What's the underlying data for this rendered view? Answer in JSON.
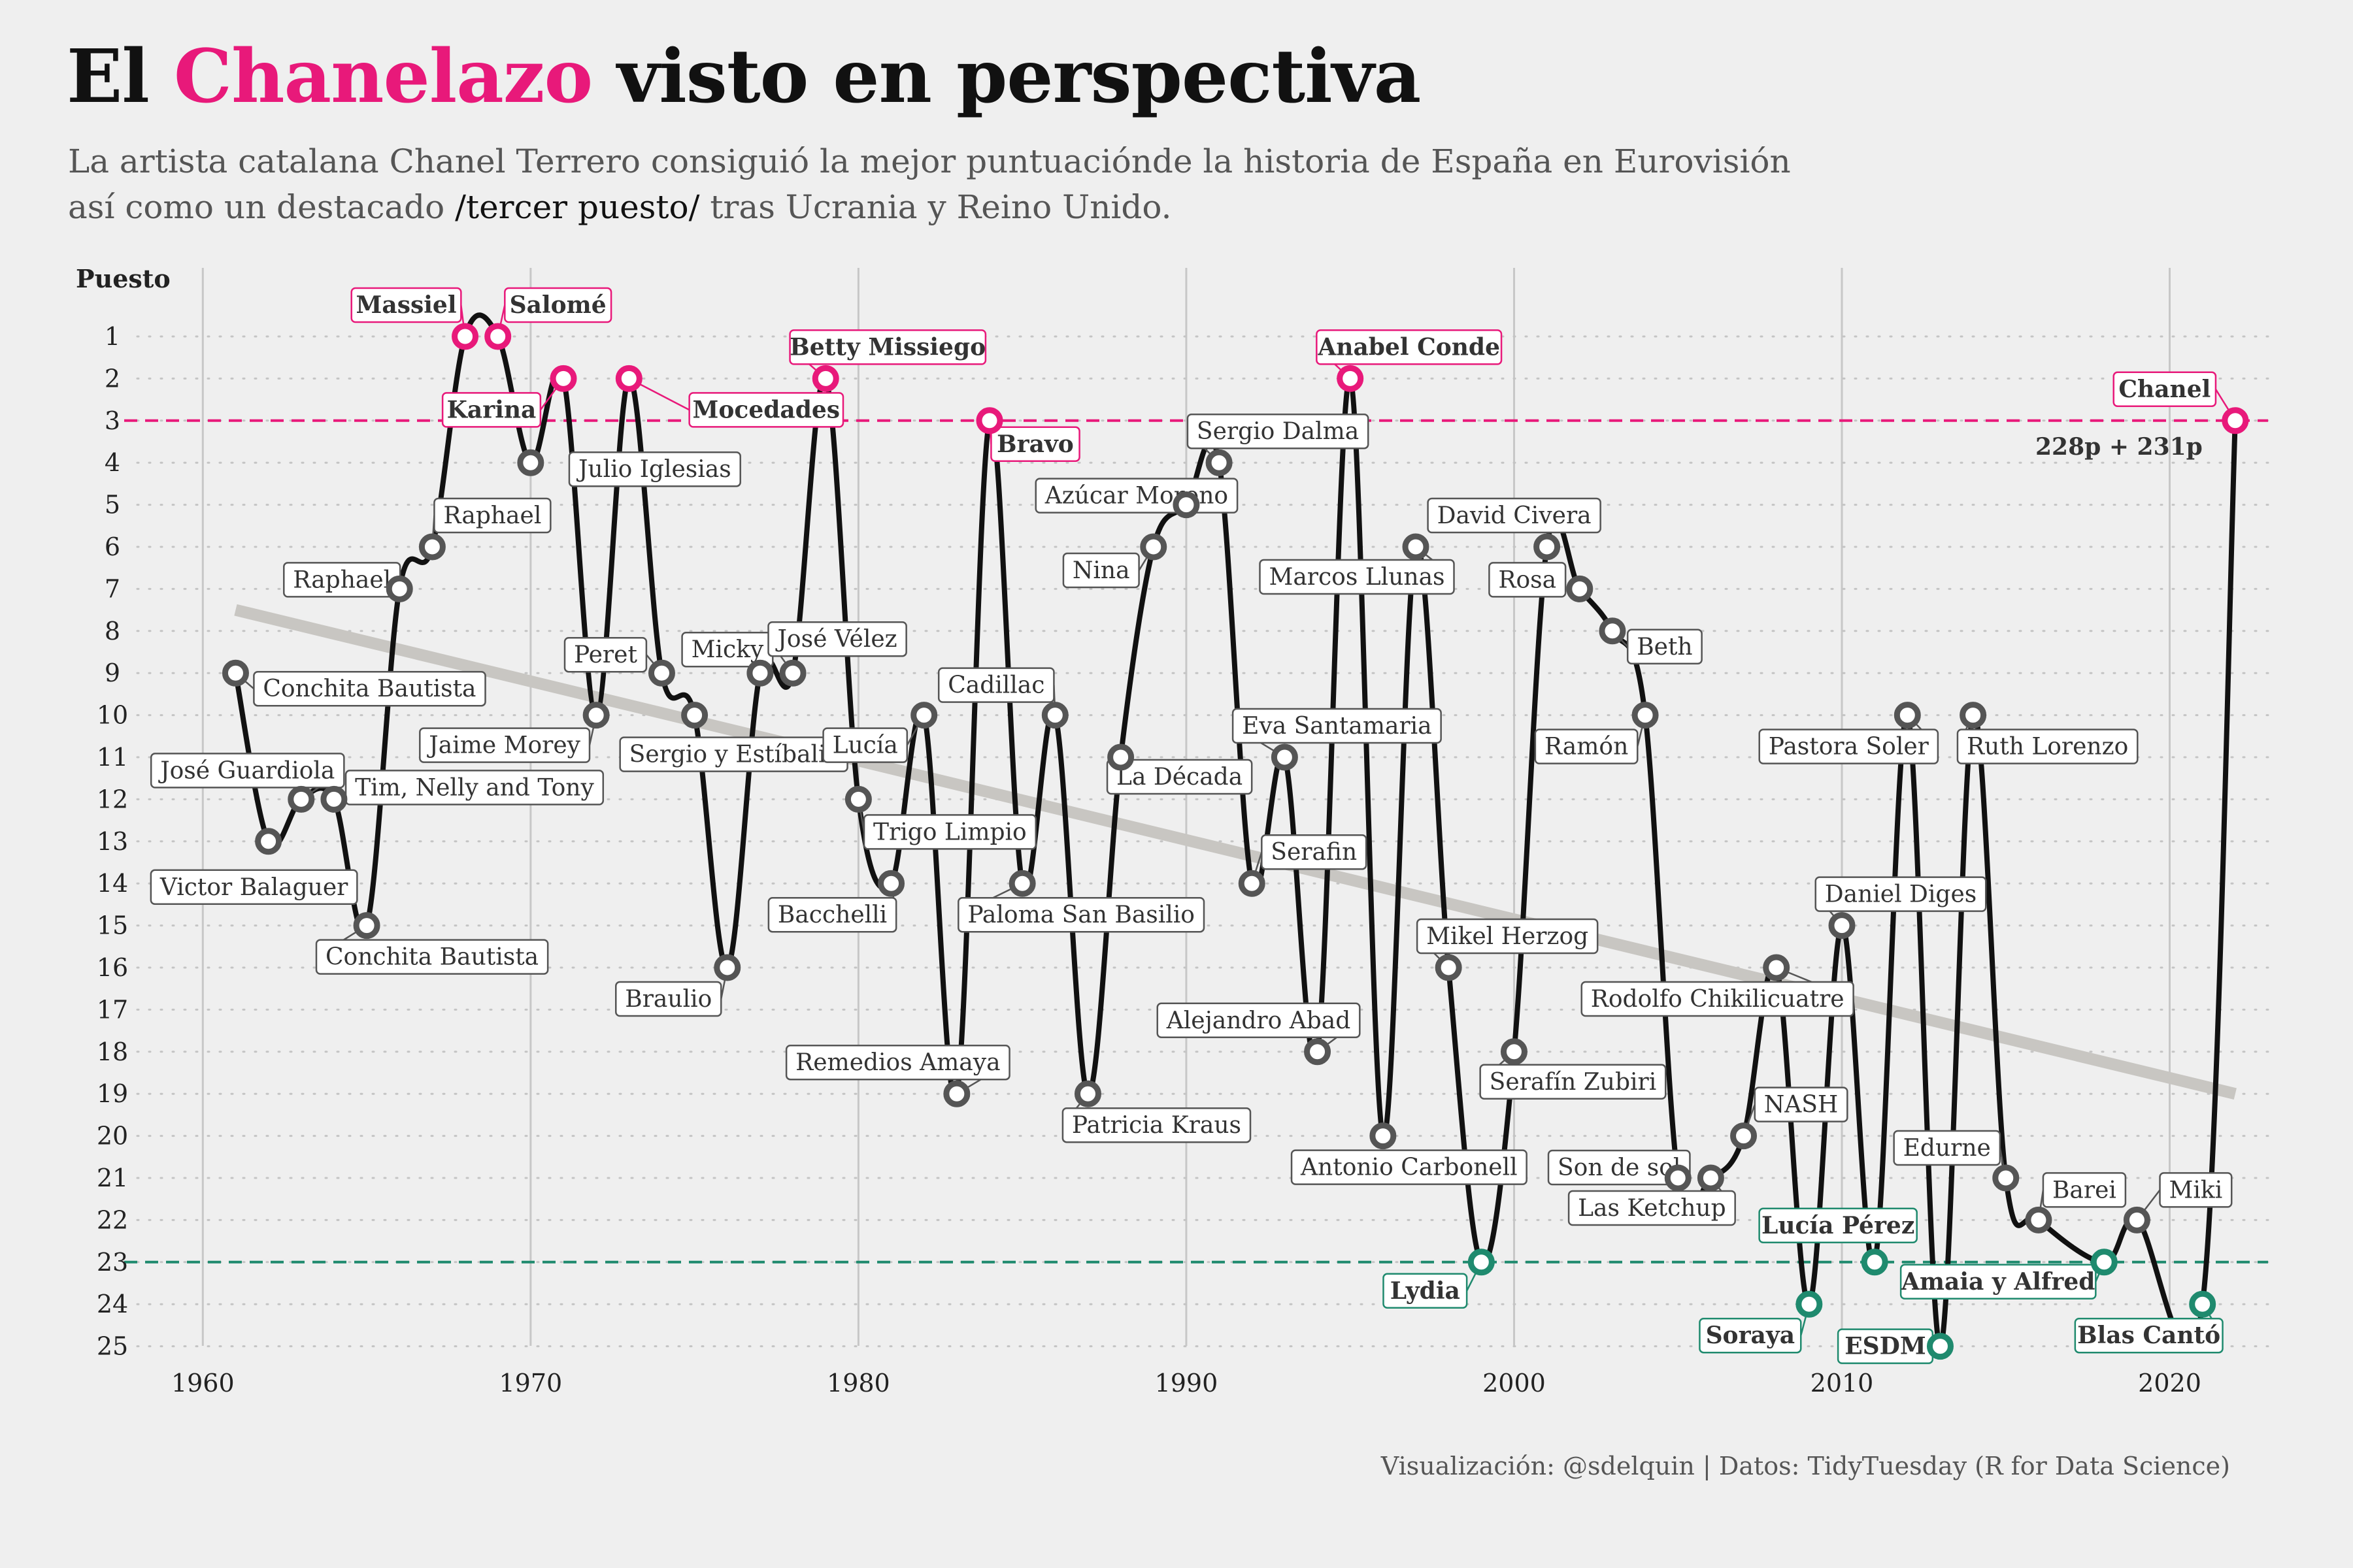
{
  "header": {
    "title_pre": "El",
    "title_highlight": "Chanelazo",
    "title_post": "visto en perspectiva",
    "subtitle_line1": "La artista catalana Chanel Terrero consiguió la mejor puntuaciónde la historia de España en Eurovisión",
    "subtitle_line2_pre": "así como un destacado",
    "subtitle_line2_em": "/tercer puesto/",
    "subtitle_line2_post": "tras Ucrania y Reino Unido."
  },
  "caption": "Visualización: @sdelquin | Datos: TidyTuesday (R for Data Science)",
  "colors": {
    "pink": "#e8197a",
    "green": "#1f8a6e",
    "gray_point": "#555555",
    "line": "#111111",
    "trend": "#c8c6c2",
    "background": "#efefef"
  },
  "chart_data": {
    "type": "line",
    "ylabel": "Puesto",
    "xlim": [
      1961,
      2022
    ],
    "ylim": [
      1,
      25
    ],
    "y_reversed": true,
    "x_ticks": [
      1960,
      1970,
      1980,
      1990,
      2000,
      2010,
      2020
    ],
    "y_ticks": [
      1,
      2,
      3,
      4,
      5,
      6,
      7,
      8,
      9,
      10,
      11,
      12,
      13,
      14,
      15,
      16,
      17,
      18,
      19,
      20,
      21,
      22,
      23,
      24,
      25
    ],
    "reference_lines": [
      {
        "y": 3,
        "color": "pink",
        "style": "dashed"
      },
      {
        "y": 23,
        "color": "green",
        "style": "dashed"
      }
    ],
    "trend_line": {
      "from": [
        1961,
        7.5
      ],
      "to": [
        2022,
        19
      ]
    },
    "annotation": {
      "text": "228p + 231p",
      "x": 2022,
      "y": 3
    },
    "points": [
      {
        "year": 1961,
        "pos": 9,
        "artist": "Conchita Bautista"
      },
      {
        "year": 1962,
        "pos": 13,
        "artist": "Victor Balaguer"
      },
      {
        "year": 1963,
        "pos": 12,
        "artist": "José Guardiola"
      },
      {
        "year": 1964,
        "pos": 12,
        "artist": "Tim, Nelly and Tony"
      },
      {
        "year": 1965,
        "pos": 15,
        "artist": "Conchita Bautista"
      },
      {
        "year": 1966,
        "pos": 7,
        "artist": "Raphael"
      },
      {
        "year": 1967,
        "pos": 6,
        "artist": "Raphael"
      },
      {
        "year": 1968,
        "pos": 1,
        "artist": "Massiel"
      },
      {
        "year": 1969,
        "pos": 1,
        "artist": "Salomé"
      },
      {
        "year": 1970,
        "pos": 4,
        "artist": "Julio Iglesias"
      },
      {
        "year": 1971,
        "pos": 2,
        "artist": "Karina"
      },
      {
        "year": 1972,
        "pos": 10,
        "artist": "Jaime Morey"
      },
      {
        "year": 1973,
        "pos": 2,
        "artist": "Mocedades"
      },
      {
        "year": 1974,
        "pos": 9,
        "artist": "Peret"
      },
      {
        "year": 1975,
        "pos": 10,
        "artist": "Sergio y Estíbaliz"
      },
      {
        "year": 1976,
        "pos": 16,
        "artist": "Braulio"
      },
      {
        "year": 1977,
        "pos": 9,
        "artist": "Micky"
      },
      {
        "year": 1978,
        "pos": 9,
        "artist": "José Vélez"
      },
      {
        "year": 1979,
        "pos": 2,
        "artist": "Betty Missiego"
      },
      {
        "year": 1980,
        "pos": 12,
        "artist": "Trigo Limpio"
      },
      {
        "year": 1981,
        "pos": 14,
        "artist": "Bacchelli"
      },
      {
        "year": 1982,
        "pos": 10,
        "artist": "Lucía"
      },
      {
        "year": 1983,
        "pos": 19,
        "artist": "Remedios Amaya"
      },
      {
        "year": 1984,
        "pos": 3,
        "artist": "Bravo"
      },
      {
        "year": 1985,
        "pos": 14,
        "artist": "Paloma San Basilio"
      },
      {
        "year": 1986,
        "pos": 10,
        "artist": "Cadillac"
      },
      {
        "year": 1987,
        "pos": 19,
        "artist": "Patricia Kraus"
      },
      {
        "year": 1988,
        "pos": 11,
        "artist": "La Década"
      },
      {
        "year": 1989,
        "pos": 6,
        "artist": "Nina"
      },
      {
        "year": 1990,
        "pos": 5,
        "artist": "Azúcar Moreno"
      },
      {
        "year": 1991,
        "pos": 4,
        "artist": "Sergio Dalma"
      },
      {
        "year": 1992,
        "pos": 14,
        "artist": "Serafin"
      },
      {
        "year": 1993,
        "pos": 11,
        "artist": "Eva Santamaria"
      },
      {
        "year": 1994,
        "pos": 18,
        "artist": "Alejandro Abad"
      },
      {
        "year": 1995,
        "pos": 2,
        "artist": "Anabel Conde"
      },
      {
        "year": 1996,
        "pos": 20,
        "artist": "Antonio Carbonell"
      },
      {
        "year": 1997,
        "pos": 6,
        "artist": "Marcos Llunas"
      },
      {
        "year": 1998,
        "pos": 16,
        "artist": "Mikel Herzog"
      },
      {
        "year": 1999,
        "pos": 23,
        "artist": "Lydia"
      },
      {
        "year": 2000,
        "pos": 18,
        "artist": "Serafín Zubiri"
      },
      {
        "year": 2001,
        "pos": 6,
        "artist": "David Civera"
      },
      {
        "year": 2002,
        "pos": 7,
        "artist": "Rosa"
      },
      {
        "year": 2003,
        "pos": 8,
        "artist": "Beth"
      },
      {
        "year": 2004,
        "pos": 10,
        "artist": "Ramón"
      },
      {
        "year": 2005,
        "pos": 21,
        "artist": "Son de sol"
      },
      {
        "year": 2006,
        "pos": 21,
        "artist": "Las Ketchup"
      },
      {
        "year": 2007,
        "pos": 20,
        "artist": "NASH"
      },
      {
        "year": 2008,
        "pos": 16,
        "artist": "Rodolfo Chikilicuatre"
      },
      {
        "year": 2009,
        "pos": 24,
        "artist": "Soraya"
      },
      {
        "year": 2010,
        "pos": 15,
        "artist": "Daniel Diges"
      },
      {
        "year": 2011,
        "pos": 23,
        "artist": "Lucía Pérez"
      },
      {
        "year": 2012,
        "pos": 10,
        "artist": "Pastora Soler"
      },
      {
        "year": 2013,
        "pos": 25,
        "artist": "ESDM"
      },
      {
        "year": 2014,
        "pos": 10,
        "artist": "Ruth Lorenzo"
      },
      {
        "year": 2015,
        "pos": 21,
        "artist": "Edurne"
      },
      {
        "year": 2016,
        "pos": 22,
        "artist": "Barei"
      },
      {
        "year": 2018,
        "pos": 23,
        "artist": "Amaia y Alfred"
      },
      {
        "year": 2019,
        "pos": 22,
        "artist": "Miki"
      },
      {
        "year": 2021,
        "pos": 24,
        "artist": "Blas Cantó"
      },
      {
        "year": 2022,
        "pos": 3,
        "artist": "Chanel"
      }
    ]
  }
}
